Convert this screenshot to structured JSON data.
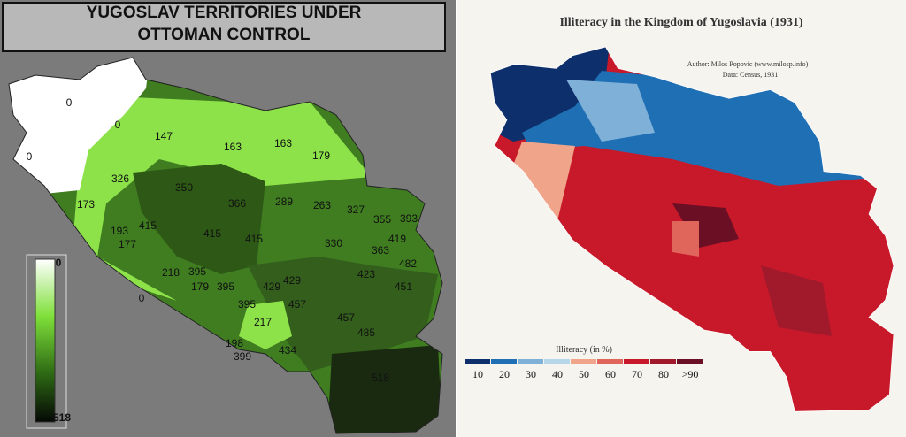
{
  "left_panel": {
    "title_lines": [
      "YUGOSLAV TERRITORIES UNDER",
      "OTTOMAN CONTROL"
    ],
    "map_labels": [
      0,
      0,
      0,
      147,
      163,
      163,
      179,
      326,
      350,
      173,
      366,
      289,
      263,
      327,
      355,
      393,
      193,
      415,
      415,
      415,
      330,
      419,
      177,
      363,
      482,
      218,
      395,
      423,
      179,
      395,
      429,
      429,
      451,
      0,
      395,
      457,
      217,
      457,
      198,
      485,
      399,
      434,
      518
    ],
    "legend": {
      "min_label": 0,
      "max_label": 518
    }
  },
  "right_panel": {
    "title": "Illiteracy in the Kingdom of Yugoslavia (1931)",
    "author": "Author: Milos Popovic (www.milosp.info)",
    "source": "Data: Census, 1931",
    "legend": {
      "title": "Illiteracy (in %)",
      "labels": [
        "10",
        "20",
        "30",
        "40",
        "50",
        "60",
        "70",
        "80",
        ">90"
      ],
      "colors": [
        "#0d2f6b",
        "#1f6fb4",
        "#7fb0d8",
        "#b6d7ea",
        "#f0a48a",
        "#e0655a",
        "#c8192b",
        "#a01a2c",
        "#6b0f24"
      ]
    }
  }
}
